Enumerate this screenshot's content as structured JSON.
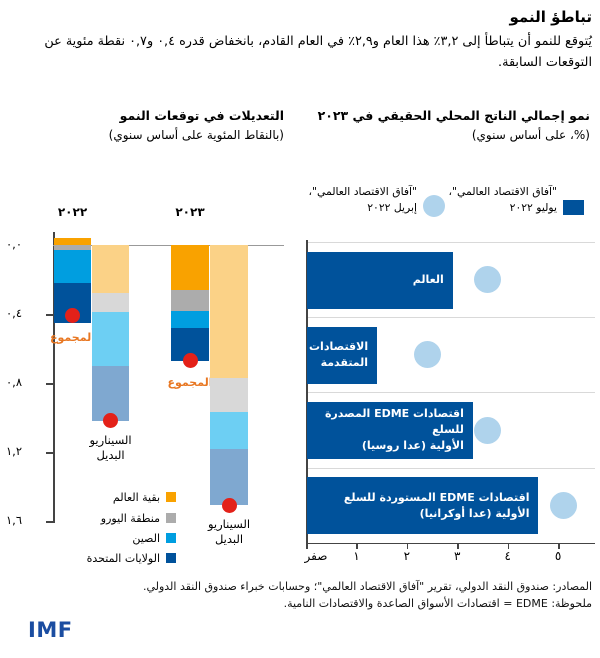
{
  "header": {
    "title": "تباطؤ النمو",
    "subtitle": "يُتوقع للنمو أن يتباطأ إلى ٣,٢٪ هذا العام و٢,٩٪ في العام القادم، بانخفاض قدره ٠,٤ و٠,٧ نقطة مئوية عن التوقعات السابقة."
  },
  "footer": {
    "sources": "المصادر: صندوق النقد الدولي، تقرير \"آفاق الاقتصاد العالمي\"؛ وحسابات خبراء صندوق النقد الدولي.",
    "note": "ملحوظة: EDME = اقتصادات الأسواق الصاعدة والاقتصادات النامية.",
    "logo": "IMF"
  },
  "colors": {
    "bar_blue": "#00529B",
    "april_dot": "#AFD3EC",
    "series": {
      "rest_of_world": "#F9A200",
      "euro_area": "#ACACAC",
      "china": "#009EE0",
      "united_states": "#00529B"
    },
    "series_alt": {
      "rest_of_world": "#FBD287",
      "euro_area": "#D8D8D8",
      "china": "#6DCFF3",
      "united_states": "#7FA8D0"
    },
    "total_dot": "#E32119",
    "total_label_color": "#E87722",
    "axis": "#444444",
    "gridline": "#D9D9D9",
    "zero_line": "#999999",
    "logo_blue": "#1B4DA1"
  },
  "chart_data": [
    {
      "type": "bar",
      "subtype": "stacked-vertical-negative",
      "title": "التعديلات في توقعات النمو",
      "subtitle": "(بالنقاط المئوية على أساس سنوي)",
      "unit": "percentage points, year over year",
      "ylim": [
        -1.6,
        0.1
      ],
      "grid": false,
      "y_ticks": [
        {
          "value": 0.0,
          "label": "٠,٠"
        },
        {
          "value": -0.4,
          "label": "٠,٤"
        },
        {
          "value": -0.8,
          "label": "٠,٨"
        },
        {
          "value": -1.2,
          "label": "١,٢"
        },
        {
          "value": -1.6,
          "label": "١,٦"
        }
      ],
      "legend": [
        {
          "key": "rest_of_world",
          "label": "بقية العالم"
        },
        {
          "key": "euro_area",
          "label": "منطقة اليورو"
        },
        {
          "key": "china",
          "label": "الصين"
        },
        {
          "key": "united_states",
          "label": "الولايات المتحدة"
        }
      ],
      "total_marker_label": "المجموع",
      "alt_bar_label": "السيناريو البديل",
      "groups": [
        {
          "year_label": "٢٠٢٢",
          "bars": [
            {
              "kind": "baseline",
              "segments": {
                "rest_of_world": 0.04,
                "euro_area": -0.03,
                "china": -0.19,
                "united_states": -0.23
              },
              "total": -0.4
            },
            {
              "kind": "alternative",
              "segments": {
                "rest_of_world": -0.28,
                "euro_area": -0.11,
                "china": -0.31,
                "united_states": -0.32
              },
              "total": -1.0
            }
          ]
        },
        {
          "year_label": "٢٠٢٣",
          "bars": [
            {
              "kind": "baseline",
              "segments": {
                "rest_of_world": -0.26,
                "euro_area": -0.12,
                "china": -0.1,
                "united_states": -0.19
              },
              "total": -0.7
            },
            {
              "kind": "alternative",
              "segments": {
                "rest_of_world": -0.77,
                "euro_area": -0.2,
                "china": -0.21,
                "united_states": -0.33
              },
              "total": -1.5
            }
          ]
        }
      ]
    },
    {
      "type": "bar",
      "subtype": "horizontal-with-dots",
      "title": "نمو إجمالي الناتج المحلي الحقيقي في ٢٠٢٣",
      "subtitle": "(%، على أساس سنوي)",
      "unit": "%, year over year",
      "xlim": [
        0,
        5
      ],
      "grid": true,
      "x_ticks": [
        {
          "value": 0,
          "label": "صفر"
        },
        {
          "value": 1,
          "label": "١"
        },
        {
          "value": 2,
          "label": "٢"
        },
        {
          "value": 3,
          "label": "٣"
        },
        {
          "value": 4,
          "label": "٤"
        },
        {
          "value": 5,
          "label": "٥"
        }
      ],
      "legend": [
        {
          "marker": "square",
          "series": "july",
          "label": "\"آفاق الاقتصاد العالمي\"،",
          "label2": "يوليو ٢٠٢٢"
        },
        {
          "marker": "circle",
          "series": "april",
          "label": "\"آفاق الاقتصاد العالمي\"،",
          "label2": "إبريل ٢٠٢٢"
        }
      ],
      "categories": [
        {
          "key": "world",
          "label_lines": [
            "العالم"
          ],
          "july": 2.9,
          "april": 3.6
        },
        {
          "key": "advanced",
          "label_lines": [
            "الاقتصادات",
            "المتقدمة"
          ],
          "july": 1.4,
          "april": 2.4
        },
        {
          "key": "edme_exporters",
          "label_lines": [
            "اقتصادات EDME المصدرة للسلع",
            "الأولية (عدا روسيا)"
          ],
          "july": 3.3,
          "april": 3.6
        },
        {
          "key": "edme_importers",
          "label_lines": [
            "اقتصادات EDME المستوردة للسلع",
            "الأولية (عدا أوكرانيا)"
          ],
          "july": 4.6,
          "april": 5.1
        }
      ]
    }
  ]
}
